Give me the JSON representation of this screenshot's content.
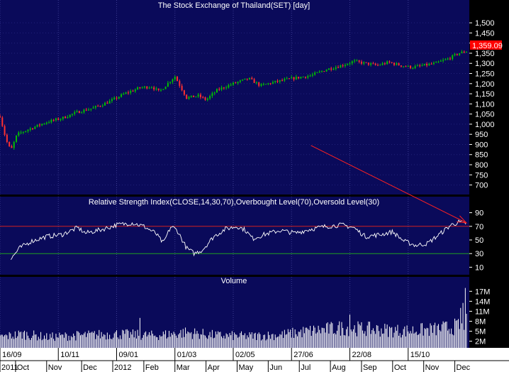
{
  "chart_data": [
    {
      "type": "candlestick",
      "title": "The Stock Exchange of Thailand(SET) [day]",
      "ylim": [
        660,
        1560
      ],
      "yticks": [
        700,
        750,
        800,
        850,
        900,
        950,
        1000,
        1050,
        1100,
        1150,
        1200,
        1250,
        1300,
        1350,
        1400,
        1450,
        1500
      ],
      "ytick_labels": [
        "700",
        "750",
        "800",
        "850",
        "900",
        "950",
        "1,000",
        "1,050",
        "1,100",
        "1,150",
        "1,200",
        "1,250",
        "1,300",
        "1,350",
        "1,400",
        "1,450",
        "1,500"
      ],
      "last_price_label": "1,359.09",
      "colors": {
        "up": "#00c000",
        "down": "#ff3030",
        "price_tag": "#ff0000",
        "background": "#0a0a5a"
      },
      "anchors": [
        {
          "d": 0,
          "v": 1040
        },
        {
          "d": 8,
          "v": 920
        },
        {
          "d": 14,
          "v": 870
        },
        {
          "d": 22,
          "v": 950
        },
        {
          "d": 40,
          "v": 980
        },
        {
          "d": 60,
          "v": 1010
        },
        {
          "d": 80,
          "v": 1030
        },
        {
          "d": 100,
          "v": 1060
        },
        {
          "d": 120,
          "v": 1080
        },
        {
          "d": 140,
          "v": 1110
        },
        {
          "d": 160,
          "v": 1150
        },
        {
          "d": 180,
          "v": 1180
        },
        {
          "d": 195,
          "v": 1185
        },
        {
          "d": 205,
          "v": 1160
        },
        {
          "d": 218,
          "v": 1210
        },
        {
          "d": 225,
          "v": 1235
        },
        {
          "d": 240,
          "v": 1130
        },
        {
          "d": 255,
          "v": 1140
        },
        {
          "d": 265,
          "v": 1120
        },
        {
          "d": 280,
          "v": 1170
        },
        {
          "d": 300,
          "v": 1200
        },
        {
          "d": 320,
          "v": 1225
        },
        {
          "d": 335,
          "v": 1190
        },
        {
          "d": 350,
          "v": 1205
        },
        {
          "d": 375,
          "v": 1225
        },
        {
          "d": 400,
          "v": 1240
        },
        {
          "d": 420,
          "v": 1270
        },
        {
          "d": 440,
          "v": 1290
        },
        {
          "d": 455,
          "v": 1310
        },
        {
          "d": 470,
          "v": 1300
        },
        {
          "d": 485,
          "v": 1290
        },
        {
          "d": 500,
          "v": 1305
        },
        {
          "d": 515,
          "v": 1290
        },
        {
          "d": 530,
          "v": 1280
        },
        {
          "d": 545,
          "v": 1290
        },
        {
          "d": 560,
          "v": 1300
        },
        {
          "d": 575,
          "v": 1320
        },
        {
          "d": 590,
          "v": 1350
        },
        {
          "d": 600,
          "v": 1359
        }
      ]
    },
    {
      "type": "line",
      "title": "Relative Strength Index(CLOSE,14,30,70),Overbought Level(70),Oversold Level(30)",
      "ylim": [
        0,
        100
      ],
      "yticks": [
        10,
        30,
        50,
        70,
        90
      ],
      "levels": [
        {
          "value": 70,
          "color": "#d02020"
        },
        {
          "value": 30,
          "color": "#20a020"
        }
      ],
      "line_color": "#ffffff",
      "anchors": [
        {
          "d": 14,
          "v": 22
        },
        {
          "d": 25,
          "v": 38
        },
        {
          "d": 40,
          "v": 48
        },
        {
          "d": 60,
          "v": 55
        },
        {
          "d": 80,
          "v": 58
        },
        {
          "d": 100,
          "v": 68
        },
        {
          "d": 110,
          "v": 60
        },
        {
          "d": 130,
          "v": 65
        },
        {
          "d": 150,
          "v": 72
        },
        {
          "d": 170,
          "v": 75
        },
        {
          "d": 185,
          "v": 70
        },
        {
          "d": 200,
          "v": 60
        },
        {
          "d": 210,
          "v": 45
        },
        {
          "d": 220,
          "v": 70
        },
        {
          "d": 228,
          "v": 64
        },
        {
          "d": 240,
          "v": 38
        },
        {
          "d": 250,
          "v": 30
        },
        {
          "d": 260,
          "v": 35
        },
        {
          "d": 275,
          "v": 55
        },
        {
          "d": 290,
          "v": 66
        },
        {
          "d": 305,
          "v": 70
        },
        {
          "d": 315,
          "v": 65
        },
        {
          "d": 325,
          "v": 52
        },
        {
          "d": 340,
          "v": 58
        },
        {
          "d": 360,
          "v": 64
        },
        {
          "d": 380,
          "v": 60
        },
        {
          "d": 400,
          "v": 66
        },
        {
          "d": 420,
          "v": 70
        },
        {
          "d": 440,
          "v": 72
        },
        {
          "d": 455,
          "v": 68
        },
        {
          "d": 470,
          "v": 55
        },
        {
          "d": 490,
          "v": 58
        },
        {
          "d": 505,
          "v": 62
        },
        {
          "d": 520,
          "v": 48
        },
        {
          "d": 535,
          "v": 42
        },
        {
          "d": 550,
          "v": 45
        },
        {
          "d": 565,
          "v": 58
        },
        {
          "d": 580,
          "v": 72
        },
        {
          "d": 590,
          "v": 76
        },
        {
          "d": 600,
          "v": 74
        }
      ]
    },
    {
      "type": "bar",
      "title": "Volume",
      "ylim": [
        0,
        19.2
      ],
      "yticks": [
        2,
        5,
        8,
        11,
        14,
        17
      ],
      "ytick_labels": [
        "2M",
        "5M",
        "8M",
        "11M",
        "14M",
        "17M"
      ],
      "bar_color": "#ffffff",
      "unit": "M",
      "anchors": [
        {
          "d": 0,
          "v": 3.5
        },
        {
          "d": 30,
          "v": 4.5
        },
        {
          "d": 60,
          "v": 3.5
        },
        {
          "d": 100,
          "v": 4.0
        },
        {
          "d": 150,
          "v": 4.5
        },
        {
          "d": 200,
          "v": 4.0
        },
        {
          "d": 240,
          "v": 5.0
        },
        {
          "d": 280,
          "v": 4.0
        },
        {
          "d": 320,
          "v": 3.8
        },
        {
          "d": 360,
          "v": 4.2
        },
        {
          "d": 400,
          "v": 5.5
        },
        {
          "d": 440,
          "v": 6.5
        },
        {
          "d": 480,
          "v": 6.0
        },
        {
          "d": 520,
          "v": 5.5
        },
        {
          "d": 560,
          "v": 6.0
        },
        {
          "d": 590,
          "v": 7.0
        },
        {
          "d": 600,
          "v": 8.0
        }
      ],
      "spikes": [
        {
          "d": 180,
          "v": 9.0
        },
        {
          "d": 450,
          "v": 10.0
        },
        {
          "d": 592,
          "v": 12.0
        },
        {
          "d": 596,
          "v": 13.5
        },
        {
          "d": 599,
          "v": 18.0
        }
      ]
    }
  ],
  "x_axis": {
    "total_days": 600,
    "top_labels": [
      {
        "d": 0,
        "label": "16/09"
      },
      {
        "d": 75,
        "label": "10/11"
      },
      {
        "d": 150,
        "label": "09/01"
      },
      {
        "d": 225,
        "label": "01/03"
      },
      {
        "d": 300,
        "label": "02/05"
      },
      {
        "d": 375,
        "label": "27/06"
      },
      {
        "d": 450,
        "label": "22/08"
      },
      {
        "d": 525,
        "label": "15/10"
      }
    ],
    "bottom_labels": [
      {
        "d": -2,
        "label": "2011"
      },
      {
        "d": 20,
        "label": "Oct"
      },
      {
        "d": 60,
        "label": "Nov"
      },
      {
        "d": 105,
        "label": "Dec"
      },
      {
        "d": 145,
        "label": "2012"
      },
      {
        "d": 185,
        "label": "Feb"
      },
      {
        "d": 225,
        "label": "Mar"
      },
      {
        "d": 265,
        "label": "Apr"
      },
      {
        "d": 305,
        "label": "May"
      },
      {
        "d": 345,
        "label": "Jun"
      },
      {
        "d": 385,
        "label": "Jul"
      },
      {
        "d": 425,
        "label": "Aug"
      },
      {
        "d": 465,
        "label": "Sep"
      },
      {
        "d": 505,
        "label": "Oct"
      },
      {
        "d": 545,
        "label": "Nov"
      },
      {
        "d": 585,
        "label": "Dec"
      }
    ]
  },
  "annotation": {
    "type": "arrow",
    "color": "#ff2020",
    "from": {
      "d": 400,
      "v": 895
    },
    "to": {
      "d": 600,
      "v": 75
    }
  }
}
